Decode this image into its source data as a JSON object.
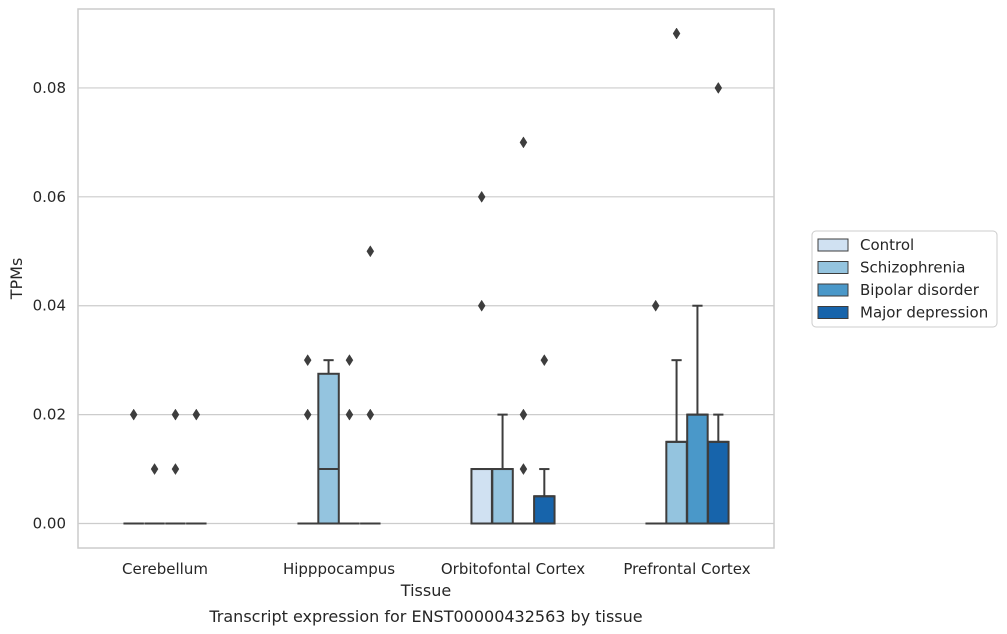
{
  "chart_data": {
    "type": "box",
    "title": "",
    "caption": "Transcript expression for ENST00000432563 by tissue",
    "xlabel": "Tissue",
    "ylabel": "TPMs",
    "ylim": [
      -0.0045,
      0.0945
    ],
    "yticks": [
      0.0,
      0.02,
      0.04,
      0.06,
      0.08
    ],
    "ytick_labels": [
      "0.00",
      "0.02",
      "0.04",
      "0.06",
      "0.08"
    ],
    "grid": true,
    "legend_position": "right",
    "categories": [
      "Cerebellum",
      "Hipppocampus",
      "Orbitofontal Cortex",
      "Prefrontal Cortex"
    ],
    "series": [
      {
        "name": "Control",
        "color": "#d0e1f2",
        "boxes": [
          {
            "q1": 0,
            "median": 0,
            "q3": 0,
            "whislo": 0,
            "whishi": 0,
            "fliers": [
              0.02
            ]
          },
          {
            "q1": 0,
            "median": 0,
            "q3": 0,
            "whislo": 0,
            "whishi": 0,
            "fliers": [
              0.02,
              0.03
            ]
          },
          {
            "q1": 0,
            "median": 0.01,
            "q3": 0.01,
            "whislo": 0,
            "whishi": 0.01,
            "fliers": [
              0.04,
              0.06
            ]
          },
          {
            "q1": 0,
            "median": 0,
            "q3": 0,
            "whislo": 0,
            "whishi": 0,
            "fliers": [
              0.04
            ]
          }
        ]
      },
      {
        "name": "Schizophrenia",
        "color": "#94c4df",
        "boxes": [
          {
            "q1": 0,
            "median": 0,
            "q3": 0,
            "whislo": 0,
            "whishi": 0,
            "fliers": [
              0.01
            ]
          },
          {
            "q1": 0,
            "median": 0.01,
            "q3": 0.0275,
            "whislo": 0,
            "whishi": 0.03,
            "fliers": []
          },
          {
            "q1": 0,
            "median": 0.01,
            "q3": 0.01,
            "whislo": 0,
            "whishi": 0.02,
            "fliers": []
          },
          {
            "q1": 0,
            "median": 0.015,
            "q3": 0.015,
            "whislo": 0,
            "whishi": 0.03,
            "fliers": [
              0.09
            ]
          }
        ]
      },
      {
        "name": "Bipolar disorder",
        "color": "#4a98c9",
        "boxes": [
          {
            "q1": 0,
            "median": 0,
            "q3": 0,
            "whislo": 0,
            "whishi": 0,
            "fliers": [
              0.01,
              0.02
            ]
          },
          {
            "q1": 0,
            "median": 0,
            "q3": 0,
            "whislo": 0,
            "whishi": 0,
            "fliers": [
              0.02,
              0.03
            ]
          },
          {
            "q1": 0,
            "median": 0,
            "q3": 0,
            "whislo": 0,
            "whishi": 0,
            "fliers": [
              0.01,
              0.02,
              0.07
            ]
          },
          {
            "q1": 0,
            "median": 0.02,
            "q3": 0.02,
            "whislo": 0,
            "whishi": 0.04,
            "fliers": []
          }
        ]
      },
      {
        "name": "Major depression",
        "color": "#1764ab",
        "boxes": [
          {
            "q1": 0,
            "median": 0,
            "q3": 0,
            "whislo": 0,
            "whishi": 0,
            "fliers": [
              0.02
            ]
          },
          {
            "q1": 0,
            "median": 0,
            "q3": 0,
            "whislo": 0,
            "whishi": 0,
            "fliers": [
              0.02,
              0.05
            ]
          },
          {
            "q1": 0,
            "median": 0.005,
            "q3": 0.005,
            "whislo": 0,
            "whishi": 0.01,
            "fliers": [
              0.03
            ]
          },
          {
            "q1": 0,
            "median": 0.015,
            "q3": 0.015,
            "whislo": 0,
            "whishi": 0.02,
            "fliers": [
              0.08
            ]
          }
        ]
      }
    ]
  }
}
